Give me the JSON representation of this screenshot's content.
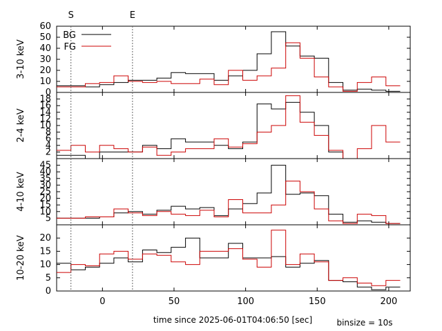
{
  "chart_data": {
    "type": "line",
    "style": "step",
    "xlabel": "time since 2025-06-01T04:06:50 [sec]",
    "annotation": "binsize = 10s",
    "xlim": [
      -32,
      215
    ],
    "xticks": [
      "0",
      "50",
      "100",
      "150",
      "200"
    ],
    "xtick_values": [
      0,
      50,
      100,
      150,
      200
    ],
    "markers": [
      {
        "label": "S",
        "x": -22
      },
      {
        "label": "E",
        "x": 21
      }
    ],
    "legend": {
      "position": "top-left",
      "entries": [
        "BG",
        "FG"
      ]
    },
    "colors": {
      "BG": "#000000",
      "FG": "#cc0000"
    },
    "bin_edges": [
      -32,
      -22,
      -12,
      -2,
      8,
      18,
      28,
      38,
      48,
      58,
      68,
      78,
      88,
      98,
      108,
      118,
      128,
      138,
      148,
      158,
      168,
      178,
      188,
      198,
      208
    ],
    "panels": [
      {
        "ylabel": "3-10 keV",
        "ylim": [
          0,
          60
        ],
        "yticks": [
          0,
          10,
          20,
          30,
          40,
          50,
          60
        ],
        "series": [
          {
            "name": "BG",
            "values": [
              6,
              6,
              5,
              7,
              9,
              11,
              11,
              13,
              18,
              17,
              17,
              11,
              15,
              20,
              35,
              55,
              42,
              33,
              31,
              9,
              2,
              3,
              2,
              1
            ]
          },
          {
            "name": "FG",
            "values": [
              5,
              5,
              8,
              9,
              15,
              10,
              9,
              10,
              8,
              8,
              12,
              7,
              20,
              11,
              15,
              22,
              45,
              31,
              14,
              5,
              1,
              9,
              14,
              6
            ]
          }
        ]
      },
      {
        "ylabel": "2-4 keV",
        "ylim": [
          0,
          20
        ],
        "yticks": [
          2,
          4,
          6,
          8,
          10,
          12,
          14,
          16,
          18
        ],
        "ytick_labels": [
          "2",
          "4",
          "6",
          "8",
          "10",
          "12",
          "14",
          "16",
          "18"
        ],
        "series": [
          {
            "name": "BG",
            "values": [
              1,
              1,
              0,
              2,
              2,
              2,
              4,
              3,
              6,
              5,
              5,
              4,
              3,
              5,
              16.5,
              15,
              17,
              14,
              10,
              2,
              0,
              0,
              0,
              0
            ]
          },
          {
            "name": "FG",
            "values": [
              2.5,
              4,
              2,
              4,
              3,
              2,
              3.5,
              1,
              2,
              3,
              3,
              6,
              3.5,
              4.5,
              8,
              10,
              19,
              11,
              7,
              2.5,
              0,
              3,
              10,
              5
            ]
          }
        ]
      },
      {
        "ylabel": "4-10 keV",
        "ylim": [
          0,
          50
        ],
        "yticks": [
          5,
          10,
          15,
          20,
          25,
          30,
          35,
          40,
          45
        ],
        "ytick_labels": [
          "5",
          "10",
          "15",
          "20",
          "25",
          "30",
          "35",
          "40",
          "45"
        ],
        "series": [
          {
            "name": "BG",
            "values": [
              5,
              5,
              5,
              6,
              9,
              10,
              8,
              11,
              14,
              12,
              13,
              7,
              12,
              16,
              24,
              45,
              23,
              24,
              22,
              8,
              2,
              3,
              2,
              1
            ]
          },
          {
            "name": "FG",
            "values": [
              5,
              5,
              6,
              6,
              12,
              9,
              7,
              10,
              8,
              7,
              11,
              6,
              19,
              9,
              9,
              15,
              33,
              25,
              12,
              3,
              1,
              8,
              7,
              1
            ]
          }
        ]
      },
      {
        "ylabel": "10-20 keV",
        "ylim": [
          0,
          25
        ],
        "yticks": [
          0,
          5,
          10,
          15,
          20
        ],
        "ytick_labels": [
          "0",
          "5",
          "10",
          "15",
          "20"
        ],
        "series": [
          {
            "name": "BG",
            "values": [
              10.5,
              8,
              9,
              10.5,
              12.5,
              11,
              15.5,
              14.5,
              16.5,
              20,
              12.5,
              12.5,
              18,
              12.5,
              12.5,
              13,
              9,
              10.5,
              11.5,
              4,
              3.5,
              1.5,
              0.5,
              1.5
            ]
          },
          {
            "name": "FG",
            "values": [
              7,
              10,
              9.5,
              14,
              15,
              12,
              14,
              13.5,
              11,
              10,
              15,
              15,
              16,
              12,
              9,
              23,
              10,
              14,
              11,
              4,
              5,
              3,
              2,
              4
            ]
          }
        ]
      }
    ]
  }
}
